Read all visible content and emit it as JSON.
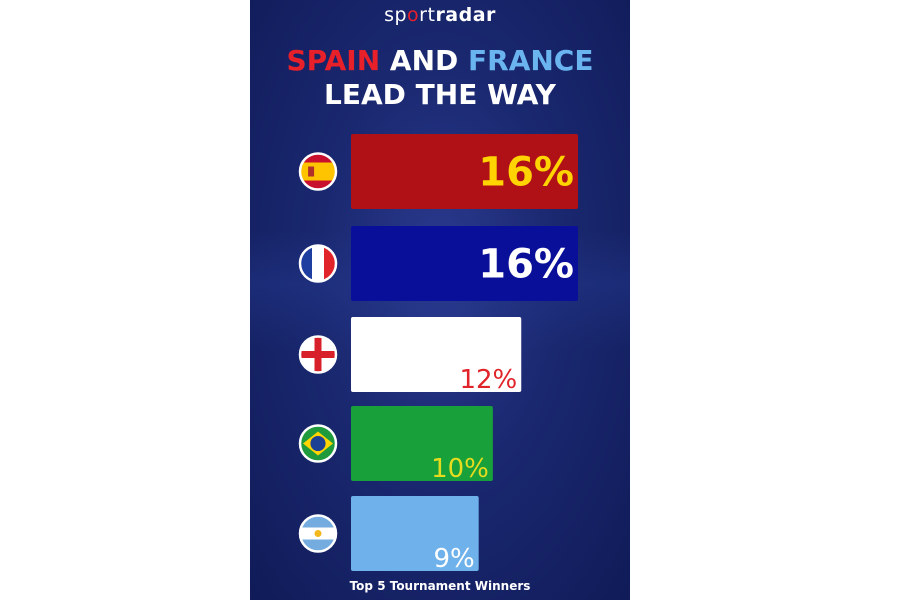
{
  "brand": {
    "part1": "sp",
    "part2": "o",
    "part3": "rt",
    "part4": "radar"
  },
  "headline": {
    "line1_word1": "SPAIN",
    "line1_word2": " AND ",
    "line1_word3": "FRANCE",
    "line2": "LEAD THE WAY"
  },
  "caption": "Top 5 Tournament Winners",
  "chart_data": {
    "type": "bar",
    "orientation": "horizontal",
    "title": "SPAIN AND FRANCE LEAD THE WAY",
    "caption": "Top 5 Tournament Winners",
    "unit": "%",
    "categories": [
      "Spain",
      "France",
      "England",
      "Brazil",
      "Argentina"
    ],
    "values": [
      16,
      16,
      12,
      10,
      9
    ],
    "labels": [
      "16%",
      "16%",
      "12%",
      "10%",
      "9%"
    ],
    "bar_colors": [
      "#b01117",
      "#0a0f9a",
      "#ffffff",
      "#18a03a",
      "#6fb1ea"
    ],
    "label_colors": [
      "#ffd400",
      "#ffffff",
      "#e0242a",
      "#e6dc1f",
      "#ffffff"
    ],
    "label_weights": [
      "bold",
      "bold",
      "normal",
      "normal",
      "normal"
    ],
    "xlim": [
      0,
      16
    ],
    "grid": false,
    "legend": "none",
    "icons": [
      "spain-flag-icon",
      "france-flag-icon",
      "england-flag-icon",
      "brazil-flag-icon",
      "argentina-flag-icon"
    ]
  },
  "colors": {
    "panel_bg": "#1a2870",
    "headline_red": "#e8202a",
    "headline_blue": "#6ab4ef",
    "brand_accent": "#e8202a"
  }
}
